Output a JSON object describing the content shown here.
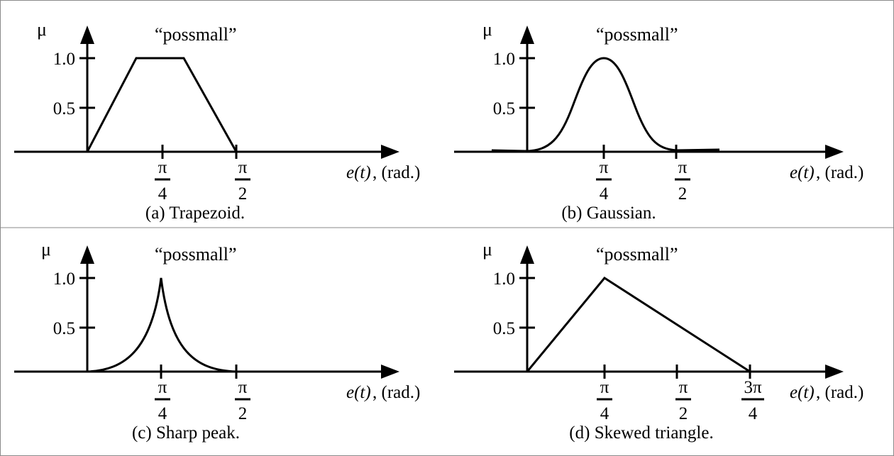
{
  "figure": {
    "y_axis_symbol": "μ",
    "x_axis_label_italic": "e(t)",
    "x_axis_label_rest": ", (rad.)",
    "curve_name": "“possmall”",
    "y_ticks": [
      "1.0",
      "0.5"
    ],
    "pi_symbol": "π"
  },
  "panels": [
    {
      "caption": "(a) Trapezoid.",
      "shape": "trapezoid",
      "ticks": [
        {
          "num": "π",
          "den": "4"
        },
        {
          "num": "π",
          "den": "2"
        }
      ]
    },
    {
      "caption": "(b) Gaussian.",
      "shape": "gaussian",
      "ticks": [
        {
          "num": "π",
          "den": "4"
        },
        {
          "num": "π",
          "den": "2"
        }
      ]
    },
    {
      "caption": "(c) Sharp peak.",
      "shape": "sharp-peak",
      "ticks": [
        {
          "num": "π",
          "den": "4"
        },
        {
          "num": "π",
          "den": "2"
        }
      ]
    },
    {
      "caption": "(d) Skewed triangle.",
      "shape": "skewed-triangle",
      "ticks": [
        {
          "num": "π",
          "den": "4"
        },
        {
          "num": "π",
          "den": "2"
        },
        {
          "num": "3π",
          "den": "4"
        }
      ]
    }
  ]
}
